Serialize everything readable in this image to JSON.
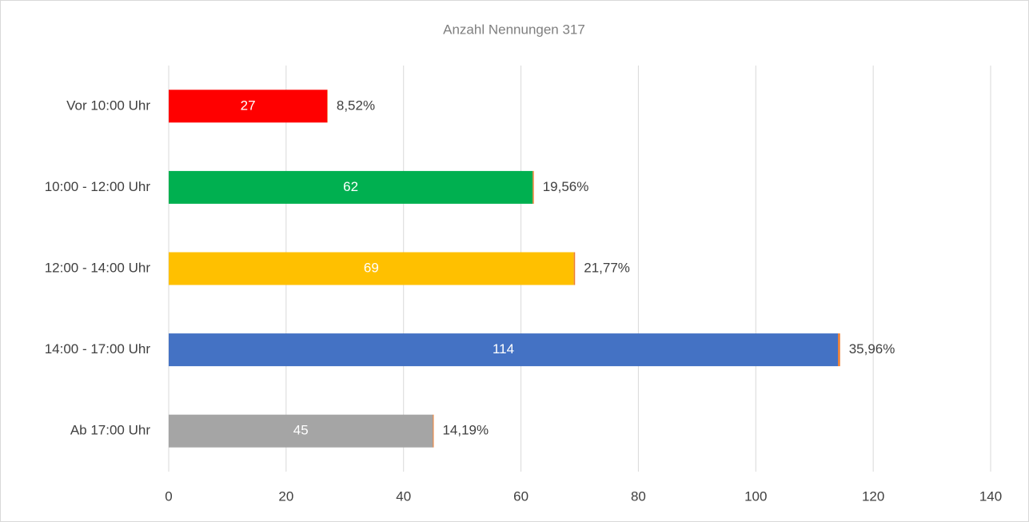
{
  "chart_data": {
    "type": "stacked-hbar",
    "title": "Anzahl Nennungen 317",
    "categories": [
      "Vor 10:00 Uhr",
      "10:00 - 12:00 Uhr",
      "12:00 - 14:00 Uhr",
      "14:00 - 17:00 Uhr",
      "Ab 17:00 Uhr"
    ],
    "series": [
      {
        "colors": [
          "#ff0000",
          "#00b050",
          "#ffc000",
          "#4472c4",
          "#a5a5a5"
        ],
        "values": [
          27,
          62,
          69,
          114,
          45
        ]
      },
      {
        "color": "#ed7d31",
        "values": [
          0.0852,
          0.1956,
          0.2177,
          0.3596,
          0.1419
        ],
        "value_labels": [
          "8,52%",
          "19,56%",
          "21,77%",
          "35,96%",
          "14,19%"
        ]
      }
    ],
    "xlim": [
      0,
      140
    ],
    "xticks": [
      0,
      20,
      40,
      60,
      80,
      100,
      120,
      140
    ],
    "grid": true
  }
}
